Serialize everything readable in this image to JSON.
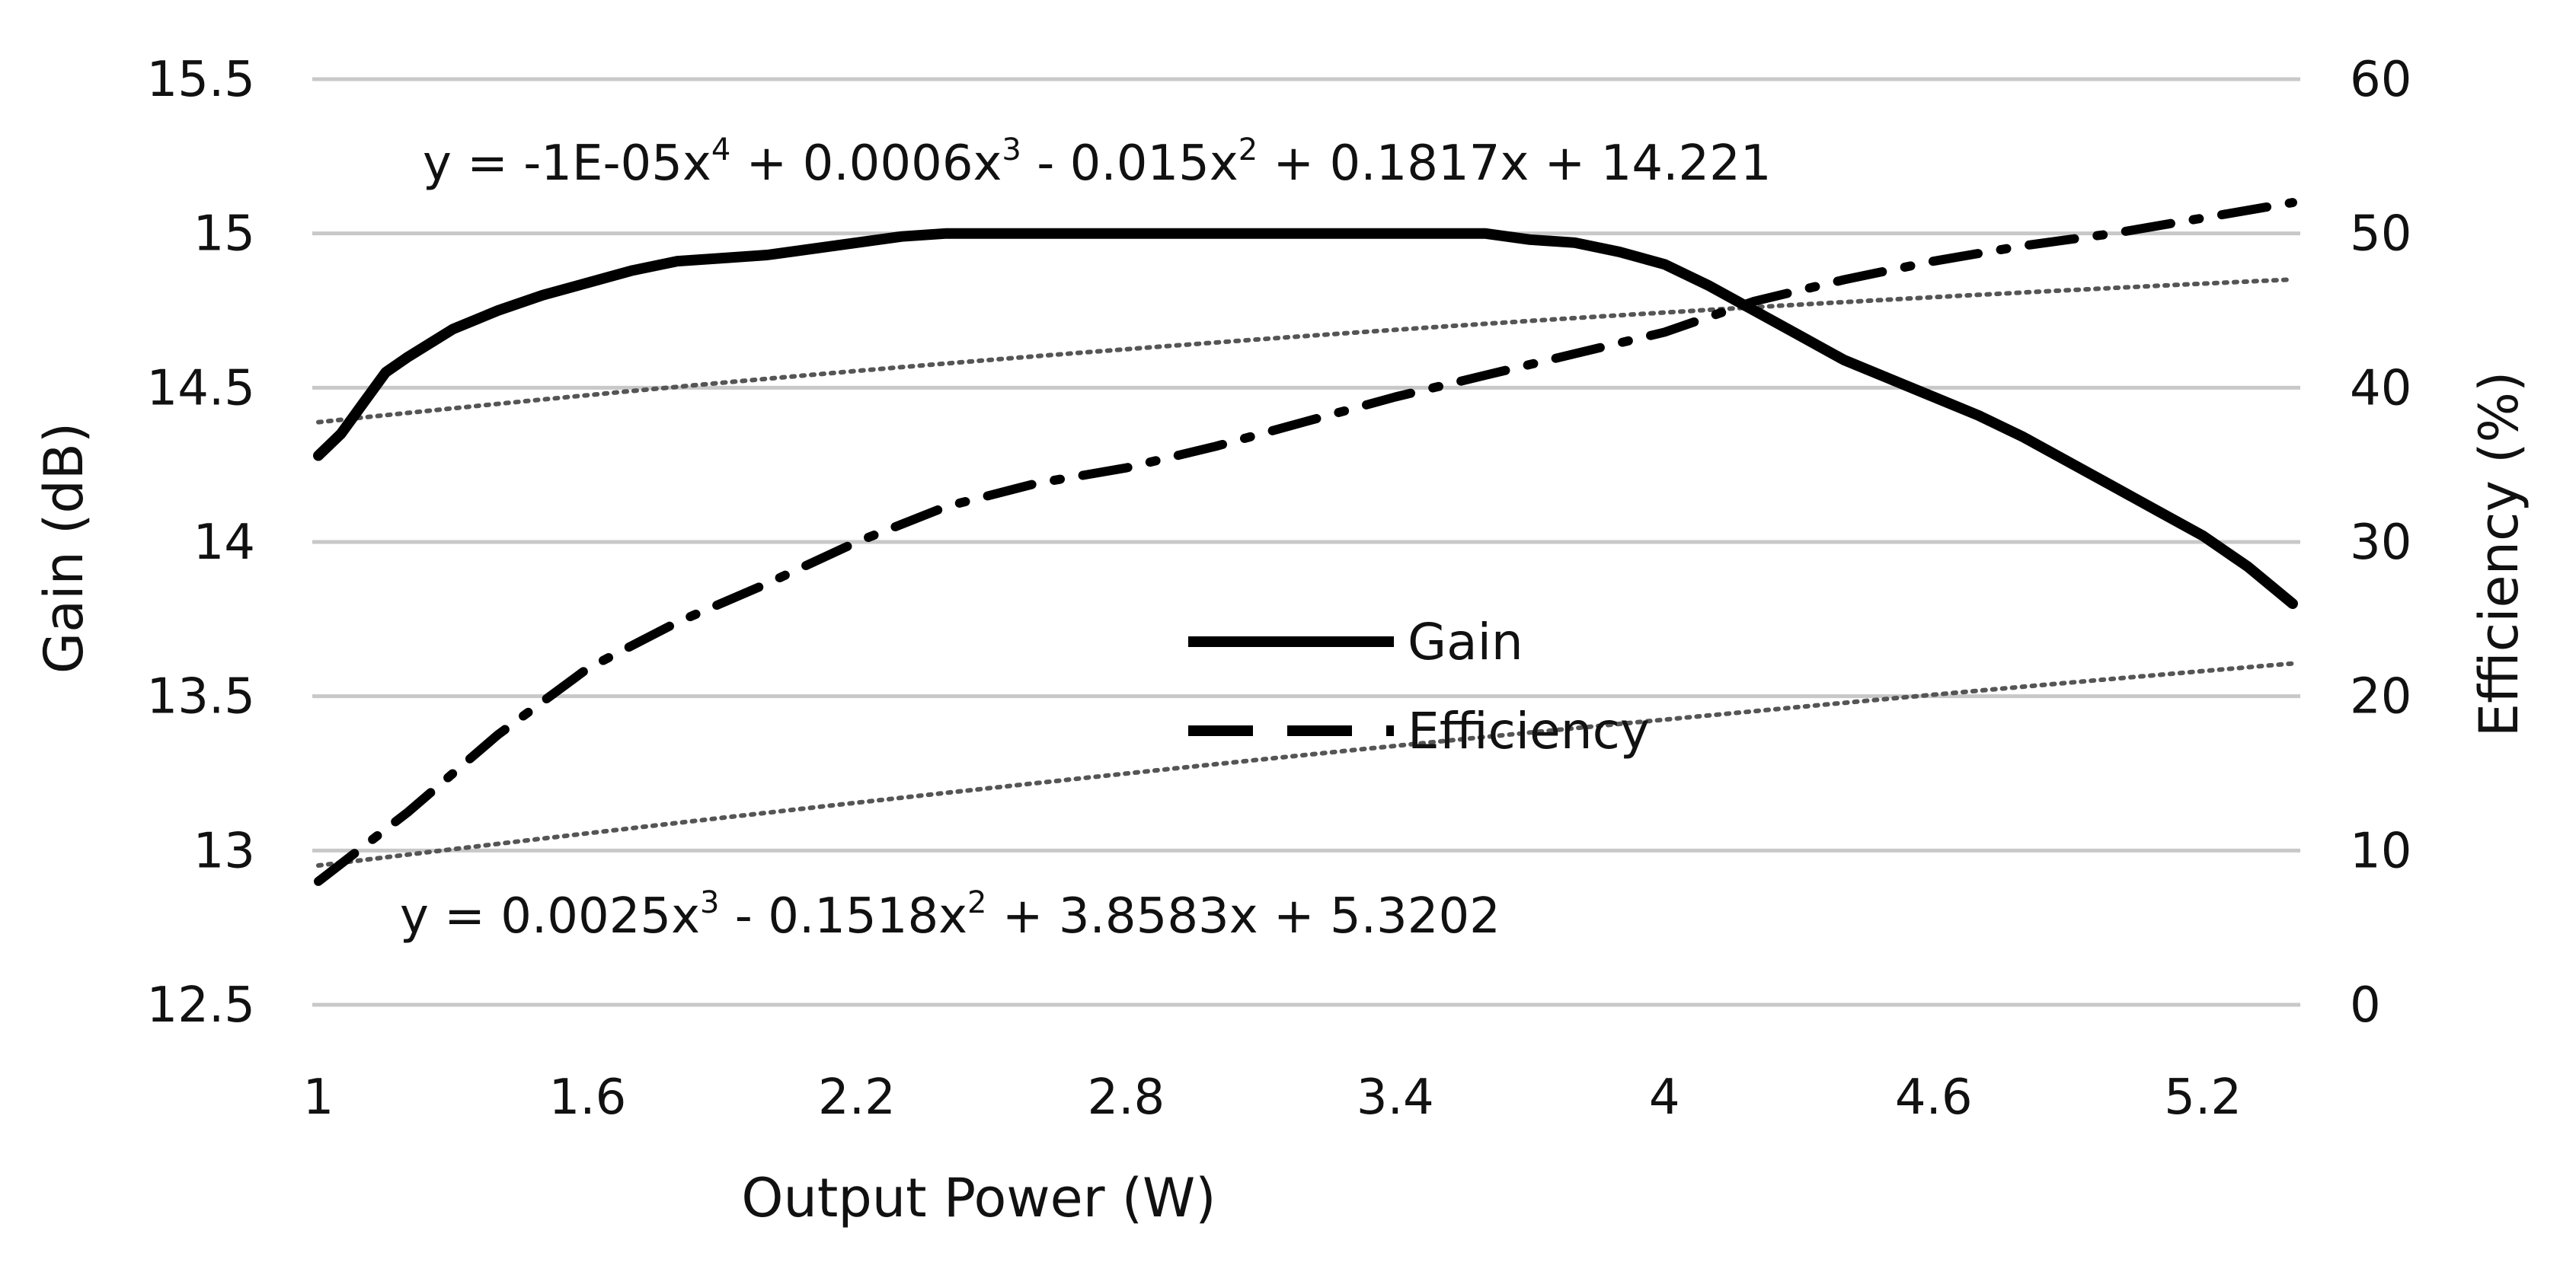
{
  "chart_data": {
    "type": "line",
    "title": "",
    "xlabel": "Output Power (W)",
    "ylabel_left": "Gain (dB)",
    "ylabel_right": "Efficiency (%)",
    "x_ticks": [
      "1",
      "1.6",
      "2.2",
      "2.8",
      "3.4",
      "4",
      "4.6",
      "5.2"
    ],
    "y_left_ticks": [
      "12.5",
      "13",
      "13.5",
      "14",
      "14.5",
      "15",
      "15.5"
    ],
    "y_right_ticks": [
      "0",
      "10",
      "20",
      "30",
      "40",
      "50",
      "60"
    ],
    "xlim": [
      1,
      5.4
    ],
    "ylim_left": [
      12.5,
      15.5
    ],
    "ylim_right": [
      0,
      60
    ],
    "grid": true,
    "legend_position": "center",
    "legend": [
      {
        "name": "Gain",
        "style": "solid"
      },
      {
        "name": "Efficiency",
        "style": "dashed"
      }
    ],
    "series": [
      {
        "name": "Gain",
        "axis": "left",
        "x": [
          1.0,
          1.05,
          1.1,
          1.15,
          1.2,
          1.3,
          1.4,
          1.5,
          1.6,
          1.7,
          1.8,
          1.9,
          2.0,
          2.1,
          2.2,
          2.3,
          2.4,
          2.6,
          2.8,
          3.0,
          3.2,
          3.4,
          3.6,
          3.7,
          3.8,
          3.9,
          4.0,
          4.1,
          4.2,
          4.3,
          4.4,
          4.5,
          4.6,
          4.7,
          4.8,
          4.9,
          5.0,
          5.1,
          5.2,
          5.3,
          5.4
        ],
        "values": [
          14.28,
          14.35,
          14.45,
          14.55,
          14.6,
          14.69,
          14.75,
          14.8,
          14.84,
          14.88,
          14.91,
          14.92,
          14.93,
          14.95,
          14.97,
          14.99,
          15.0,
          15.0,
          15.0,
          15.0,
          15.0,
          15.0,
          15.0,
          14.98,
          14.97,
          14.94,
          14.9,
          14.83,
          14.75,
          14.67,
          14.59,
          14.53,
          14.47,
          14.41,
          14.34,
          14.26,
          14.18,
          14.1,
          14.02,
          13.92,
          13.8
        ]
      },
      {
        "name": "Efficiency",
        "axis": "right",
        "x": [
          1.0,
          1.2,
          1.4,
          1.6,
          1.8,
          2.0,
          2.2,
          2.4,
          2.6,
          2.8,
          3.0,
          3.2,
          3.4,
          3.6,
          3.8,
          4.0,
          4.2,
          4.4,
          4.6,
          4.8,
          5.0,
          5.2,
          5.4
        ],
        "values": [
          8.0,
          12.5,
          17.5,
          21.8,
          24.8,
          27.3,
          30.0,
          32.3,
          33.8,
          34.8,
          36.2,
          37.8,
          39.4,
          40.8,
          42.2,
          43.6,
          45.6,
          47.0,
          48.2,
          49.2,
          50.0,
          51.0,
          52.0
        ]
      }
    ],
    "trendlines": [
      {
        "series": "Gain",
        "style": "dotted",
        "coefficients_high_to_low": [
          -1e-05,
          0.0006,
          -0.015,
          0.1817,
          14.221
        ]
      },
      {
        "series": "Efficiency",
        "style": "dotted",
        "coefficients_high_to_low": [
          0.0025,
          -0.1518,
          3.8583,
          5.3202
        ]
      }
    ],
    "annotations": {
      "gain_equation": {
        "prefix": "y = -1E-05x",
        "exp4": "4",
        "t2": " + 0.0006x",
        "exp3": "3",
        "t3": " - 0.015x",
        "exp2": "2",
        "t4": " + 0.1817x + 14.221"
      },
      "efficiency_equation": {
        "prefix": "y = 0.0025x",
        "exp3": "3",
        "t2": " - 0.1518x",
        "exp2": "2",
        "t3": " + 3.8583x + 5.3202"
      }
    }
  }
}
